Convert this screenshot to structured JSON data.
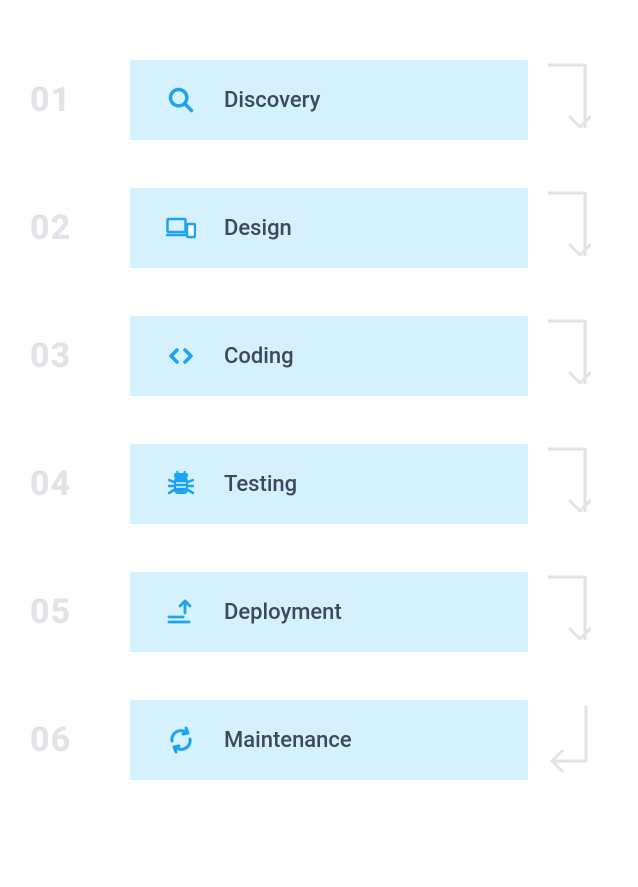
{
  "type": "infographic",
  "layout": "vertical-steps",
  "background_color": "#ffffff",
  "number_color": "#e1e3e8",
  "number_fontsize": 34,
  "number_fontweight": 800,
  "box_bg_color": "#d5f1fd",
  "icon_color": "#1ca3f3",
  "label_color": "#3a4a5c",
  "label_fontsize": 22,
  "label_fontweight": 500,
  "arrow_color": "#e1e3e8",
  "arrow_stroke_width": 3,
  "steps": [
    {
      "num": "01",
      "label": "Discovery",
      "icon": "search-icon",
      "arrow": "down"
    },
    {
      "num": "02",
      "label": "Design",
      "icon": "devices-icon",
      "arrow": "down"
    },
    {
      "num": "03",
      "label": "Coding",
      "icon": "code-icon",
      "arrow": "down"
    },
    {
      "num": "04",
      "label": "Testing",
      "icon": "bug-icon",
      "arrow": "down"
    },
    {
      "num": "05",
      "label": "Deployment",
      "icon": "upload-icon",
      "arrow": "down"
    },
    {
      "num": "06",
      "label": "Maintenance",
      "icon": "sync-icon",
      "arrow": "return"
    }
  ]
}
